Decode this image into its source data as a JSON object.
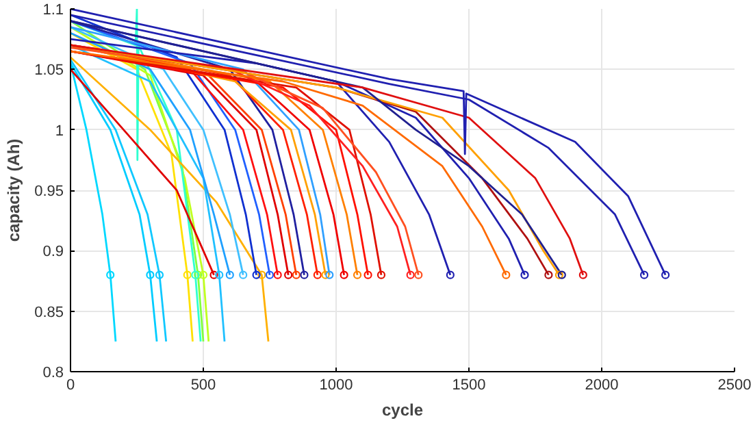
{
  "chart_data": {
    "type": "line",
    "xlabel": "cycle",
    "ylabel": "capacity (Ah)",
    "xlim": [
      0,
      2500
    ],
    "ylim": [
      0.8,
      1.1
    ],
    "xticks": [
      0,
      500,
      1000,
      1500,
      2000,
      2500
    ],
    "yticks": [
      0.8,
      0.85,
      0.9,
      0.95,
      1,
      1.05,
      1.1
    ],
    "grid": true,
    "line_style": "solid",
    "series": [
      {
        "color": "#00d8ff",
        "x": [
          0,
          60,
          120,
          150,
          170
        ],
        "values": [
          1.055,
          1.0,
          0.93,
          0.88,
          0.825
        ]
      },
      {
        "color": "#00ccff",
        "x": [
          0,
          150,
          260,
          300,
          325
        ],
        "values": [
          1.055,
          1.0,
          0.93,
          0.88,
          0.825
        ]
      },
      {
        "color": "#10c8ff",
        "x": [
          0,
          170,
          290,
          335,
          360
        ],
        "values": [
          1.058,
          1.0,
          0.93,
          0.88,
          0.825
        ]
      },
      {
        "color": "#ffe000",
        "x": [
          0,
          250,
          380,
          440,
          460
        ],
        "values": [
          1.08,
          1.05,
          0.98,
          0.88,
          0.825
        ]
      },
      {
        "color": "#80ff40",
        "x": [
          0,
          280,
          420,
          480,
          500
        ],
        "values": [
          1.09,
          1.05,
          0.97,
          0.88,
          0.825
        ]
      },
      {
        "color": "#c0ff20",
        "x": [
          0,
          300,
          430,
          500,
          520
        ],
        "values": [
          1.085,
          1.045,
          0.96,
          0.88,
          0.825
        ]
      },
      {
        "color": "#30ffd0",
        "x": [
          0,
          245,
          250,
          252,
          256,
          400,
          470,
          490
        ],
        "values": [
          1.09,
          1.07,
          1.1,
          0.975,
          1.07,
          1.0,
          0.88,
          0.825
        ]
      },
      {
        "color": "#ffb000",
        "x": [
          0,
          300,
          550,
          720,
          745
        ],
        "values": [
          1.06,
          1.0,
          0.94,
          0.88,
          0.825
        ]
      },
      {
        "color": "#e00000",
        "x": [
          0,
          200,
          400,
          540
        ],
        "values": [
          1.05,
          1.0,
          0.95,
          0.88
        ]
      },
      {
        "color": "#20c0ff",
        "x": [
          0,
          300,
          500,
          560,
          580
        ],
        "values": [
          1.07,
          1.04,
          0.96,
          0.88,
          0.825
        ]
      },
      {
        "color": "#1fa0ff",
        "x": [
          0,
          300,
          450,
          540,
          600
        ],
        "values": [
          1.08,
          1.05,
          1.0,
          0.93,
          0.88
        ]
      },
      {
        "color": "#40c0ff",
        "x": [
          0,
          350,
          500,
          600,
          650
        ],
        "values": [
          1.085,
          1.05,
          1.0,
          0.93,
          0.88
        ]
      },
      {
        "color": "#1030d0",
        "x": [
          0,
          400,
          580,
          660,
          700
        ],
        "values": [
          1.095,
          1.06,
          1.0,
          0.93,
          0.88
        ]
      },
      {
        "color": "#2060ff",
        "x": [
          0,
          450,
          620,
          710,
          750
        ],
        "values": [
          1.09,
          1.055,
          1.0,
          0.93,
          0.88
        ]
      },
      {
        "color": "#ff1010",
        "x": [
          0,
          450,
          650,
          740,
          780
        ],
        "values": [
          1.07,
          1.05,
          1.0,
          0.93,
          0.88
        ]
      },
      {
        "color": "#e00000",
        "x": [
          0,
          500,
          700,
          780,
          820
        ],
        "values": [
          1.065,
          1.045,
          1.0,
          0.93,
          0.88
        ]
      },
      {
        "color": "#ff4000",
        "x": [
          0,
          520,
          720,
          810,
          850
        ],
        "values": [
          1.07,
          1.045,
          1.0,
          0.93,
          0.88
        ]
      },
      {
        "color": "#2020a0",
        "x": [
          0,
          600,
          760,
          840,
          880
        ],
        "values": [
          1.09,
          1.05,
          1.0,
          0.93,
          0.88
        ]
      },
      {
        "color": "#ff2000",
        "x": [
          0,
          600,
          800,
          890,
          930
        ],
        "values": [
          1.07,
          1.045,
          1.0,
          0.93,
          0.88
        ]
      },
      {
        "color": "#ffa000",
        "x": [
          0,
          620,
          830,
          920,
          960
        ],
        "values": [
          1.07,
          1.04,
          1.0,
          0.93,
          0.88
        ]
      },
      {
        "color": "#30a0ff",
        "x": [
          0,
          650,
          860,
          940,
          975
        ],
        "values": [
          1.085,
          1.05,
          1.0,
          0.93,
          0.88
        ]
      },
      {
        "color": "#f00000",
        "x": [
          0,
          700,
          900,
          990,
          1030
        ],
        "values": [
          1.065,
          1.04,
          1.0,
          0.93,
          0.88
        ]
      },
      {
        "color": "#ff8000",
        "x": [
          0,
          750,
          950,
          1040,
          1080
        ],
        "values": [
          1.07,
          1.04,
          1.0,
          0.93,
          0.88
        ]
      },
      {
        "color": "#ff1000",
        "x": [
          0,
          800,
          1000,
          1080,
          1120
        ],
        "values": [
          1.065,
          1.035,
          1.0,
          0.93,
          0.88
        ]
      },
      {
        "color": "#e01000",
        "x": [
          0,
          850,
          1050,
          1130,
          1170
        ],
        "values": [
          1.065,
          1.035,
          1.0,
          0.93,
          0.88
        ]
      },
      {
        "color": "#ff2020",
        "x": [
          0,
          600,
          900,
          1100,
          1230,
          1280
        ],
        "values": [
          1.07,
          1.05,
          1.02,
          0.97,
          0.92,
          0.88
        ]
      },
      {
        "color": "#ff5020",
        "x": [
          0,
          650,
          950,
          1150,
          1260,
          1310
        ],
        "values": [
          1.068,
          1.048,
          1.018,
          0.965,
          0.92,
          0.88
        ]
      },
      {
        "color": "#2020b0",
        "x": [
          0,
          700,
          1000,
          1200,
          1350,
          1430
        ],
        "values": [
          1.075,
          1.055,
          1.04,
          0.99,
          0.93,
          0.88
        ]
      },
      {
        "color": "#ff6a00",
        "x": [
          0,
          800,
          1100,
          1400,
          1550,
          1640
        ],
        "values": [
          1.065,
          1.04,
          1.02,
          0.97,
          0.92,
          0.88
        ]
      },
      {
        "color": "#2020b0",
        "x": [
          0,
          1000,
          1300,
          1500,
          1650,
          1710
        ],
        "values": [
          1.09,
          1.04,
          1.01,
          0.96,
          0.91,
          0.88
        ]
      },
      {
        "color": "#b01010",
        "x": [
          0,
          1000,
          1300,
          1550,
          1720,
          1800
        ],
        "values": [
          1.07,
          1.035,
          1.015,
          0.96,
          0.91,
          0.88
        ]
      },
      {
        "color": "#ffa000",
        "x": [
          0,
          1000,
          1400,
          1650,
          1780,
          1840
        ],
        "values": [
          1.07,
          1.035,
          1.01,
          0.95,
          0.9,
          0.88
        ]
      },
      {
        "color": "#202090",
        "x": [
          0,
          1100,
          1300,
          1500,
          1700,
          1850
        ],
        "values": [
          1.09,
          1.035,
          1.0,
          0.97,
          0.93,
          0.88
        ]
      },
      {
        "color": "#e01010",
        "x": [
          0,
          1100,
          1500,
          1750,
          1880,
          1930
        ],
        "values": [
          1.07,
          1.035,
          1.01,
          0.96,
          0.91,
          0.88
        ]
      },
      {
        "color": "#2020b0",
        "x": [
          0,
          1200,
          1500,
          1800,
          2050,
          2160
        ],
        "values": [
          1.095,
          1.038,
          1.025,
          0.985,
          0.93,
          0.88
        ]
      },
      {
        "color": "#2020b0",
        "x": [
          0,
          1200,
          1480,
          1485,
          1490,
          1900,
          2100,
          2240
        ],
        "values": [
          1.1,
          1.042,
          1.032,
          0.98,
          1.03,
          0.99,
          0.945,
          0.88
        ]
      },
      {
        "type": "scatter",
        "marker": "circle",
        "x": [
          150,
          300,
          335,
          440,
          480,
          500,
          470,
          720,
          540,
          560,
          600,
          650,
          700,
          750,
          780,
          820,
          850,
          880,
          930,
          960,
          975,
          1030,
          1080,
          1120,
          1170,
          1280,
          1310,
          1430,
          1640,
          1710,
          1800,
          1840,
          1850,
          1930,
          2160,
          2240
        ],
        "values": [
          0.88,
          0.88,
          0.88,
          0.88,
          0.88,
          0.88,
          0.88,
          0.88,
          0.88,
          0.88,
          0.88,
          0.88,
          0.88,
          0.88,
          0.88,
          0.88,
          0.88,
          0.88,
          0.88,
          0.88,
          0.88,
          0.88,
          0.88,
          0.88,
          0.88,
          0.88,
          0.88,
          0.88,
          0.88,
          0.88,
          0.88,
          0.88,
          0.88,
          0.88,
          0.88,
          0.88
        ],
        "colors": [
          "#00d8ff",
          "#00ccff",
          "#10c8ff",
          "#ffe000",
          "#80ff40",
          "#c0ff20",
          "#30ffd0",
          "#ffb000",
          "#e00000",
          "#20c0ff",
          "#1fa0ff",
          "#40c0ff",
          "#1030d0",
          "#2060ff",
          "#ff1010",
          "#e00000",
          "#ff4000",
          "#2020a0",
          "#ff2000",
          "#ffa000",
          "#30a0ff",
          "#f00000",
          "#ff8000",
          "#ff1000",
          "#e01000",
          "#ff2020",
          "#ff5020",
          "#2020b0",
          "#ff6a00",
          "#2020b0",
          "#b01010",
          "#ffa000",
          "#202090",
          "#e01010",
          "#2020b0",
          "#2020b0"
        ]
      }
    ]
  }
}
